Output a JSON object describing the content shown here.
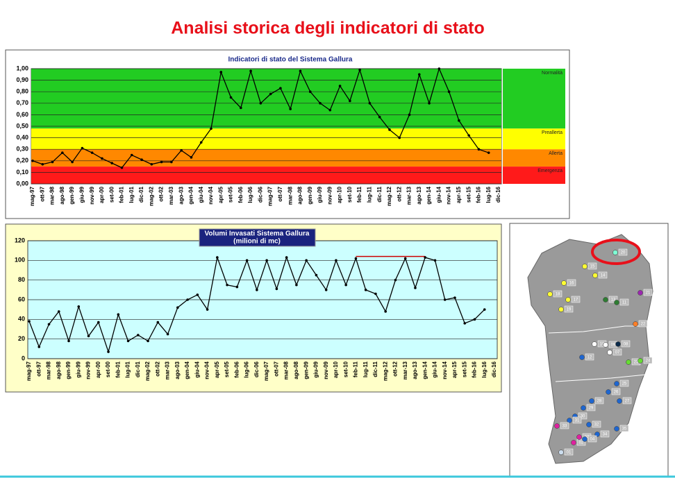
{
  "title": "Analisi storica degli indicatori di stato",
  "chart_data": [
    {
      "type": "line",
      "title": "Indicatori di stato del Sistema Gallura",
      "color": "#000000",
      "categories": [
        "mag-97",
        "ott-97",
        "mar-98",
        "ago-98",
        "gen-99",
        "giu-99",
        "nov-99",
        "apr-00",
        "set-00",
        "feb-01",
        "lug-01",
        "dic-01",
        "mag-02",
        "ott-02",
        "mar-03",
        "ago-03",
        "gen-04",
        "giu-04",
        "nov-04",
        "apr-05",
        "set-05",
        "feb-06",
        "lug-06",
        "dic-06",
        "mag-07",
        "ott-07",
        "mar-08",
        "ago-08",
        "gen-09",
        "giu-09",
        "nov-09",
        "apr-10",
        "set-10",
        "feb-11",
        "lug-11",
        "dic-11",
        "mag-12",
        "ott-12",
        "mar-13",
        "ago-13",
        "gen-14",
        "giu-14",
        "nov-14",
        "apr-15",
        "set-15",
        "feb-16",
        "lug-16",
        "dic-16"
      ],
      "values": [
        0.2,
        0.17,
        0.19,
        0.27,
        0.19,
        0.31,
        0.27,
        0.22,
        0.18,
        0.14,
        0.25,
        0.21,
        0.17,
        0.19,
        0.19,
        0.29,
        0.23,
        0.36,
        0.48,
        0.97,
        0.75,
        0.66,
        0.98,
        0.7,
        0.78,
        0.83,
        0.65,
        0.98,
        0.8,
        0.7,
        0.64,
        0.85,
        0.72,
        0.99,
        0.7,
        0.58,
        0.47,
        0.4,
        0.6,
        0.95,
        0.7,
        1.0,
        0.8,
        0.55,
        0.42,
        0.3,
        0.27,
        null
      ],
      "ylim": [
        0,
        1
      ],
      "yticks": [
        {
          "value": 0,
          "label": "0,00"
        },
        {
          "value": 0.1,
          "label": "0,10"
        },
        {
          "value": 0.2,
          "label": "0,20"
        },
        {
          "value": 0.3,
          "label": "0,30"
        },
        {
          "value": 0.4,
          "label": "0,40"
        },
        {
          "value": 0.5,
          "label": "0,50"
        },
        {
          "value": 0.6,
          "label": "0,60"
        },
        {
          "value": 0.7,
          "label": "0,70"
        },
        {
          "value": 0.8,
          "label": "0,80"
        },
        {
          "value": 0.9,
          "label": "0,90"
        },
        {
          "value": 1,
          "label": "1,00"
        }
      ],
      "grid": true,
      "bands": [
        {
          "label": "Normalità",
          "from": 0.48,
          "to": 1,
          "color": "#22cc22"
        },
        {
          "label": "Preallerta",
          "from": 0.3,
          "to": 0.48,
          "color": "#ffff00"
        },
        {
          "label": "Allerta",
          "from": 0.15,
          "to": 0.3,
          "color": "#ff8800"
        },
        {
          "label": "Emergenza",
          "from": 0,
          "to": 0.15,
          "color": "#ff1a1a"
        }
      ]
    },
    {
      "type": "line",
      "title": "Volumi Invasati Sistema Gallura",
      "subtitle": "(milioni di mc)",
      "color": "#000000",
      "categories": [
        "mag-97",
        "ott-97",
        "mar-98",
        "ago-98",
        "gen-99",
        "giu-99",
        "nov-99",
        "apr-00",
        "set-00",
        "feb-01",
        "lug-01",
        "dic-01",
        "mag-02",
        "ott-02",
        "mar-03",
        "ago-03",
        "gen-04",
        "giu-04",
        "nov-04",
        "apr-05",
        "set-05",
        "feb-06",
        "lug-06",
        "dic-06",
        "mag-07",
        "ott-07",
        "mar-08",
        "ago-08",
        "gen-09",
        "giu-09",
        "nov-09",
        "apr-10",
        "set-10",
        "feb-11",
        "lug-11",
        "dic-11",
        "mag-12",
        "ott-12",
        "mar-13",
        "ago-13",
        "gen-14",
        "giu-14",
        "nov-14",
        "apr-15",
        "set-15",
        "feb-16",
        "lug-16",
        "dic-16"
      ],
      "values": [
        38,
        12,
        35,
        48,
        18,
        53,
        23,
        37,
        7,
        45,
        18,
        24,
        18,
        37,
        25,
        52,
        60,
        65,
        50,
        103,
        75,
        73,
        100,
        70,
        100,
        71,
        103,
        75,
        100,
        85,
        70,
        100,
        75,
        102,
        70,
        66,
        48,
        80,
        102,
        72,
        103,
        100,
        60,
        62,
        36,
        40,
        50,
        null
      ],
      "ylim": [
        0,
        120
      ],
      "yticks": [
        0,
        20,
        40,
        60,
        80,
        100,
        120
      ],
      "grid": true,
      "reference": {
        "value": 104,
        "from": "feb-11",
        "to": "gen-14",
        "color": "#cc0000"
      }
    }
  ],
  "map": {
    "nodes": [
      {
        "label": "20",
        "color": "#7fffd4"
      },
      {
        "label": "15",
        "color": "#ffff33"
      },
      {
        "label": "14",
        "color": "#ffff33"
      },
      {
        "label": "16",
        "color": "#ffff33"
      },
      {
        "label": "17",
        "color": "#ffff33"
      },
      {
        "label": "18",
        "color": "#ffff33"
      },
      {
        "label": "19",
        "color": "#ffff33"
      },
      {
        "label": "13",
        "color": "#2e7d32"
      },
      {
        "label": "11",
        "color": "#2e7d32"
      },
      {
        "label": "21",
        "color": "#9c27b0"
      },
      {
        "label": "22",
        "color": "#ff7f27"
      },
      {
        "label": "10",
        "color": "#ffffff"
      },
      {
        "label": "09",
        "color": "#ffffff"
      },
      {
        "label": "08",
        "color": "#0b2a4a"
      },
      {
        "label": "07",
        "color": "#ffffff"
      },
      {
        "label": "12",
        "color": "#1e66d0"
      },
      {
        "label": "23",
        "color": "#66dd33"
      },
      {
        "label": "24",
        "color": "#66dd33"
      },
      {
        "label": "25",
        "color": "#1e66d0"
      },
      {
        "label": "26",
        "color": "#1e66d0"
      },
      {
        "label": "27",
        "color": "#1e66d0"
      },
      {
        "label": "28",
        "color": "#1e66d0"
      },
      {
        "label": "29",
        "color": "#1e66d0"
      },
      {
        "label": "30",
        "color": "#1e66d0"
      },
      {
        "label": "31",
        "color": "#1e66d0"
      },
      {
        "label": "32",
        "color": "#1e66d0"
      },
      {
        "label": "33",
        "color": "#e020a0"
      },
      {
        "label": "34",
        "color": "#1e66d0"
      },
      {
        "label": "35",
        "color": "#1e66d0"
      },
      {
        "label": "01",
        "color": "#cde"
      },
      {
        "label": "02",
        "color": "#e020a0"
      },
      {
        "label": "03",
        "color": "#e020a0"
      },
      {
        "label": "04",
        "color": "#1e66d0"
      }
    ]
  }
}
